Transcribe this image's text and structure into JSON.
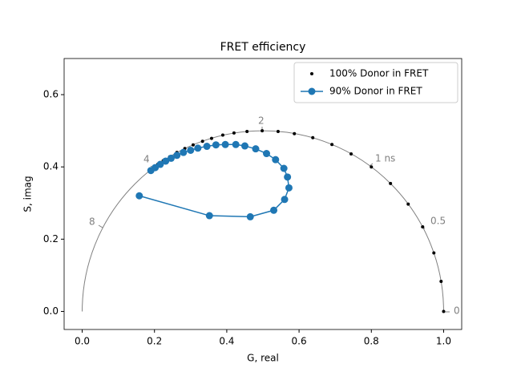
{
  "chart_data": {
    "type": "line",
    "title": "FRET efficiency",
    "xlabel": "G, real",
    "ylabel": "S, imag",
    "xlim": [
      -0.05,
      1.05
    ],
    "ylim": [
      -0.05,
      0.7
    ],
    "xticks": [
      {
        "value": 0,
        "label": "0.0"
      },
      0.2,
      0.4,
      0.6,
      0.8,
      {
        "value": 1,
        "label": "1.0"
      }
    ],
    "yticks": [
      {
        "value": 0,
        "label": "0.0"
      },
      0.2,
      0.4,
      0.6
    ],
    "legend": "upper right",
    "annotations": [
      "0",
      "0.5",
      "1 ns",
      "2",
      "4",
      "8"
    ],
    "series": [
      {
        "name": "100% Donor in FRET",
        "color": "#000000",
        "linestyle": "none",
        "marker_size": 2,
        "x": [
          1.0,
          0.993,
          0.973,
          0.942,
          0.902,
          0.853,
          0.8,
          0.744,
          0.691,
          0.638,
          0.587,
          0.542,
          0.498,
          0.456,
          0.42,
          0.389,
          0.358,
          0.333,
          0.307,
          0.284,
          0.262,
          0.242,
          0.224,
          0.209,
          0.193
        ],
        "values": [
          0,
          0.083,
          0.162,
          0.234,
          0.297,
          0.354,
          0.4,
          0.436,
          0.462,
          0.481,
          0.492,
          0.498,
          0.5,
          0.498,
          0.494,
          0.488,
          0.479,
          0.471,
          0.461,
          0.451,
          0.44,
          0.428,
          0.417,
          0.407,
          0.395
        ]
      },
      {
        "name": "90% Donor in FRET",
        "color": "#1f77b4",
        "linestyle": "solid",
        "marker_size": 4.5,
        "x": [
          0.158,
          0.352,
          0.465,
          0.53,
          0.56,
          0.572,
          0.568,
          0.558,
          0.535,
          0.51,
          0.48,
          0.45,
          0.425,
          0.396,
          0.37,
          0.345,
          0.32,
          0.3,
          0.28,
          0.262,
          0.246,
          0.231,
          0.216,
          0.202,
          0.19
        ],
        "values": [
          0.32,
          0.265,
          0.262,
          0.28,
          0.31,
          0.342,
          0.372,
          0.396,
          0.42,
          0.437,
          0.45,
          0.458,
          0.462,
          0.462,
          0.461,
          0.457,
          0.452,
          0.446,
          0.44,
          0.432,
          0.424,
          0.416,
          0.407,
          0.398,
          0.39
        ]
      }
    ]
  }
}
